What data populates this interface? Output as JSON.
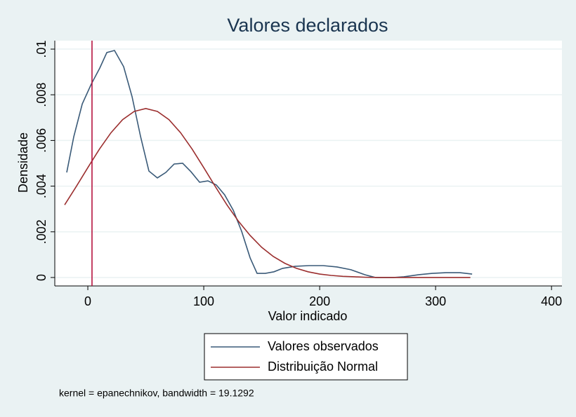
{
  "chart_data": {
    "type": "line",
    "title": "Valores declarados",
    "x_label": "Valor indicado",
    "y_label": "Densidade",
    "note": "kernel = epanechnikov, bandwidth = 19.1292",
    "xlim": [
      -28.5,
      409
    ],
    "xticks": [
      0,
      100,
      200,
      300,
      400
    ],
    "ylim": [
      -0.00037,
      0.01037
    ],
    "yticks": [
      0,
      {
        "value": 0.002,
        "label": ".002"
      },
      {
        "value": 0.004,
        "label": ".004"
      },
      {
        "value": 0.006,
        "label": ".006"
      },
      {
        "value": 0.008,
        "label": ".008"
      },
      {
        "value": 0.01,
        "label": ".01"
      }
    ],
    "grid": true,
    "xline": 3.6,
    "xline_color": "#b5123e",
    "series": [
      {
        "name": "Valores observados",
        "color": "#3a5a78",
        "x": [
          -18.2,
          -12.1,
          -4.8,
          3,
          10.3,
          16.4,
          23,
          30.9,
          38.2,
          45.5,
          52.7,
          60,
          67.3,
          74.5,
          81.8,
          89,
          96.4,
          103.6,
          110.9,
          118,
          125.5,
          132.7,
          140,
          146,
          153,
          160.6,
          168,
          179,
          191,
          203,
          215,
          227,
          239,
          248,
          264,
          272.7,
          285,
          297,
          309,
          321,
          331.5
        ],
        "values": [
          0.0046,
          0.00617,
          0.0076,
          0.00847,
          0.00917,
          0.00985,
          0.00994,
          0.00923,
          0.00791,
          0.00617,
          0.00466,
          0.00436,
          0.0046,
          0.00497,
          0.005,
          0.00463,
          0.00417,
          0.00423,
          0.00405,
          0.00362,
          0.00294,
          0.00202,
          0.00086,
          0.00018,
          0.00018,
          0.00025,
          0.0004,
          0.00049,
          0.00052,
          0.00052,
          0.00046,
          0.00034,
          0.00012,
          0,
          0,
          3e-05,
          0.00012,
          0.00018,
          0.00021,
          0.00021,
          0.00015
        ]
      },
      {
        "name": "Distribuição Normal",
        "color": "#9b2e2e",
        "x": [
          -20,
          -10,
          0,
          10,
          20,
          30,
          40,
          50,
          60,
          70,
          80,
          90,
          100,
          110,
          120,
          130,
          140,
          150,
          160,
          170,
          180,
          190,
          200,
          210,
          220,
          230,
          240,
          250,
          260,
          270,
          280,
          290,
          300,
          310,
          320,
          330
        ],
        "values": [
          0.00318,
          0.00398,
          0.00481,
          0.00562,
          0.00634,
          0.00691,
          0.00727,
          0.0074,
          0.00727,
          0.00691,
          0.00634,
          0.00562,
          0.00481,
          0.00398,
          0.00318,
          0.00246,
          0.00184,
          0.00132,
          0.00092,
          0.00062,
          0.0004,
          0.00025,
          0.00015,
          9e-05,
          5e-05,
          3e-05,
          1e-05,
          0,
          0,
          0,
          0,
          0,
          0,
          0,
          0,
          0
        ]
      }
    ]
  }
}
